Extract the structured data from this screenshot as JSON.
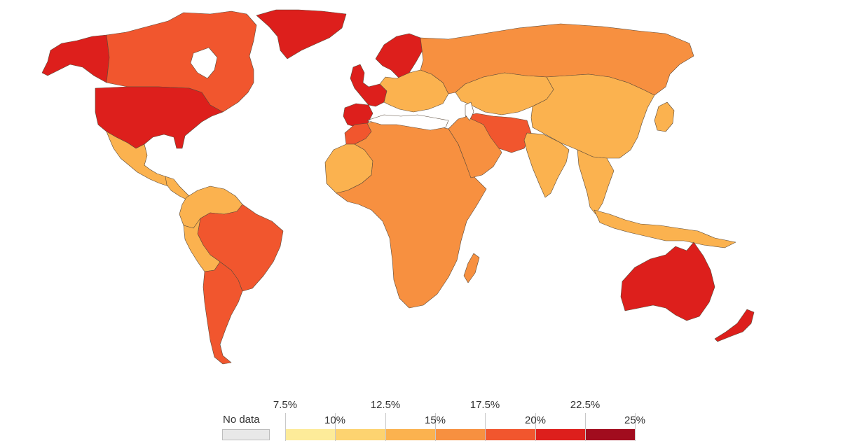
{
  "colors": {
    "no_data": "#e8e8e8",
    "bin_7_5_10": "#fdeb99",
    "bin_10_12_5": "#fdd370",
    "bin_12_5_15": "#fbb24f",
    "bin_15_17_5": "#f79040",
    "bin_17_5_20": "#f1562e",
    "bin_20_22_5": "#dd1f1c",
    "bin_22_5_25": "#a10c1e",
    "ocean": "#ffffff",
    "border": "#5a4a3a"
  },
  "legend": {
    "no_data_label": "No data",
    "ticks": [
      "7.5%",
      "10%",
      "12.5%",
      "15%",
      "17.5%",
      "20%",
      "22.5%",
      "25%"
    ],
    "bins": [
      "#fdeb99",
      "#fdd370",
      "#fbb24f",
      "#f79040",
      "#f1562e",
      "#dd1f1c",
      "#a10c1e"
    ]
  },
  "regions": [
    {
      "name": "Alaska",
      "color": "#dd1f1c"
    },
    {
      "name": "Canada",
      "color": "#f1562e"
    },
    {
      "name": "Greenland",
      "color": "#dd1f1c"
    },
    {
      "name": "United States",
      "color": "#dd1f1c"
    },
    {
      "name": "Mexico",
      "color": "#fbb24f"
    },
    {
      "name": "Central America",
      "color": "#fbb24f"
    },
    {
      "name": "Northern South America",
      "color": "#fbb24f"
    },
    {
      "name": "Brazil",
      "color": "#f1562e"
    },
    {
      "name": "Peru and Bolivia",
      "color": "#fbb24f"
    },
    {
      "name": "Chile and Argentina",
      "color": "#f1562e"
    },
    {
      "name": "Iberia",
      "color": "#dd1f1c"
    },
    {
      "name": "France and UK",
      "color": "#dd1f1c"
    },
    {
      "name": "Scandinavia",
      "color": "#dd1f1c"
    },
    {
      "name": "Central and Eastern Europe",
      "color": "#fbb24f"
    },
    {
      "name": "Russia",
      "color": "#f79040"
    },
    {
      "name": "Morocco",
      "color": "#f1562e"
    },
    {
      "name": "West Africa",
      "color": "#fbb24f"
    },
    {
      "name": "Africa",
      "color": "#f79040"
    },
    {
      "name": "Madagascar",
      "color": "#f79040"
    },
    {
      "name": "Middle East",
      "color": "#f79040"
    },
    {
      "name": "Iran and Afghanistan",
      "color": "#f1562e"
    },
    {
      "name": "Central Asia",
      "color": "#fbb24f"
    },
    {
      "name": "China and Mongolia",
      "color": "#fbb24f"
    },
    {
      "name": "India",
      "color": "#fbb24f"
    },
    {
      "name": "Southeast Asia",
      "color": "#fbb24f"
    },
    {
      "name": "Japan",
      "color": "#fbb24f"
    },
    {
      "name": "Indonesia",
      "color": "#fbb24f"
    },
    {
      "name": "Australia",
      "color": "#dd1f1c"
    },
    {
      "name": "New Zealand",
      "color": "#dd1f1c"
    }
  ]
}
